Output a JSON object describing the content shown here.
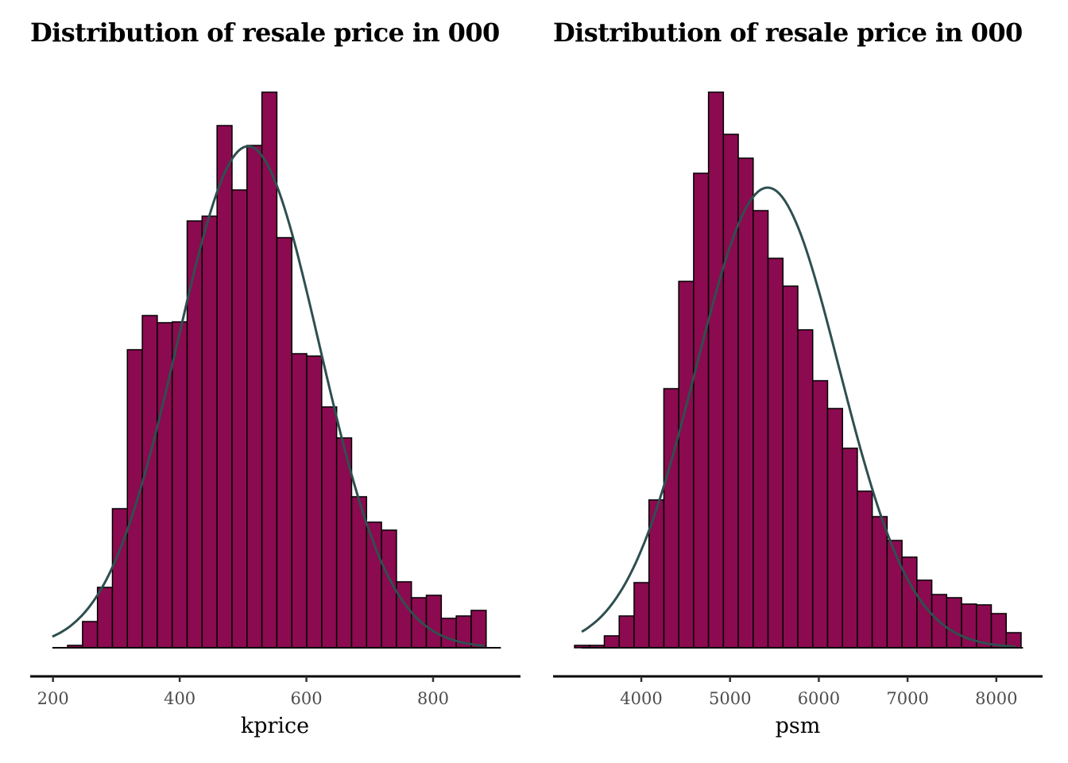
{
  "colors": {
    "bar_fill": "#8b0a50",
    "bar_stroke": "#000000",
    "curve": "#2f4f4f",
    "tick_label": "#4d4d4d",
    "axis": "#000000"
  },
  "chart_data": [
    {
      "type": "bar",
      "subtype": "histogram_with_normal_density",
      "title": "Distribution of resale price in 000",
      "xlabel": "kprice",
      "ylabel": "",
      "xlim": [
        164,
        938
      ],
      "xticks": [
        200,
        400,
        600,
        800
      ],
      "y_axis_visible": false,
      "grid": false,
      "legend": "none",
      "bin_start": 223,
      "bin_width": 23.6,
      "counts_relative": [
        3,
        33,
        76,
        175,
        375,
        418,
        409,
        410,
        537,
        543,
        657,
        576,
        632,
        699,
        516,
        370,
        367,
        303,
        264,
        190,
        158,
        148,
        83,
        63,
        66,
        37,
        40,
        47
      ],
      "density_curve": {
        "distribution": "normal",
        "mean": 508,
        "sd": 112,
        "x_range": [
          199,
          880
        ],
        "peak_relative": 631
      }
    },
    {
      "type": "bar",
      "subtype": "histogram_with_normal_density",
      "title": "Distribution of resale price in 000",
      "xlabel": "psm",
      "ylabel": "",
      "xlim": [
        3006,
        8521
      ],
      "xticks": [
        4000,
        5000,
        6000,
        7000,
        8000
      ],
      "y_axis_visible": false,
      "grid": false,
      "legend": "none",
      "bin_start": 3248,
      "bin_width": 167.7,
      "counts_relative": [
        3,
        3,
        15,
        40,
        82,
        186,
        326,
        461,
        597,
        699,
        646,
        616,
        550,
        490,
        455,
        400,
        336,
        301,
        251,
        197,
        165,
        135,
        114,
        85,
        67,
        63,
        55,
        54,
        43,
        19
      ],
      "density_curve": {
        "distribution": "normal",
        "mean": 5423,
        "sd": 808,
        "x_range": [
          3329,
          8217
        ],
        "peak_relative": 579
      }
    }
  ]
}
